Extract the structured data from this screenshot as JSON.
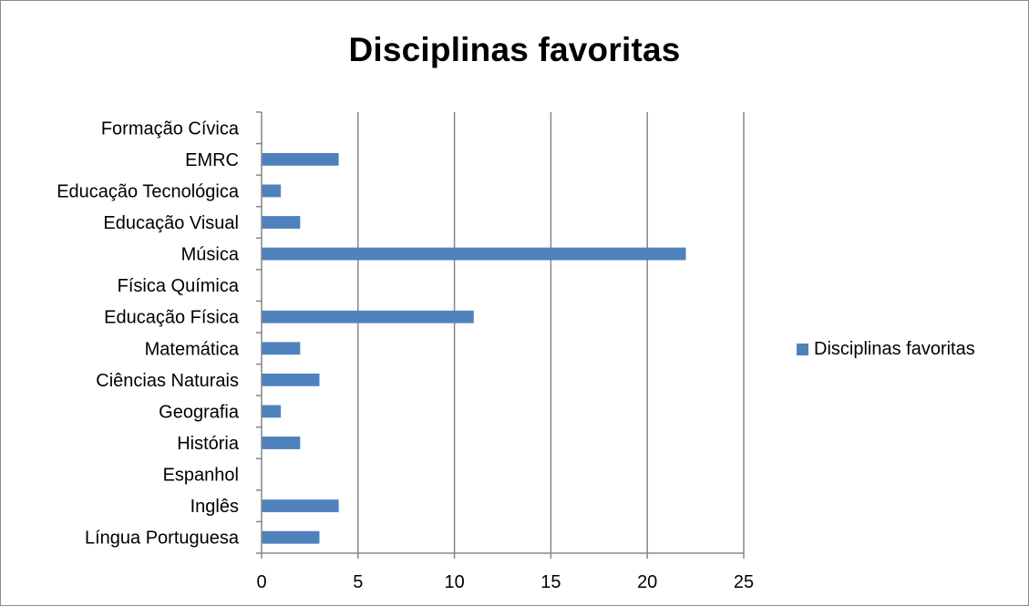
{
  "chart_data": {
    "type": "bar",
    "orientation": "horizontal",
    "title": "Disciplinas favoritas",
    "xlabel": "",
    "ylabel": "",
    "categories": [
      "Língua Portuguesa",
      "Inglês",
      "Espanhol",
      "História",
      "Geografia",
      "Ciências Naturais",
      "Matemática",
      "Educação Física",
      "Física Química",
      "Música",
      "Educação Visual",
      "Educação Tecnológica",
      "EMRC",
      "Formação Cívica"
    ],
    "series": [
      {
        "name": "Disciplinas favoritas",
        "values": [
          3,
          4,
          0,
          2,
          1,
          3,
          2,
          11,
          0,
          22,
          2,
          1,
          4,
          0
        ],
        "color": "#4f81bd"
      }
    ],
    "xlim": [
      0,
      25
    ],
    "xticks": [
      "0",
      "5",
      "10",
      "15",
      "20",
      "25"
    ],
    "grid": "vertical major gridlines",
    "legend": "right"
  },
  "colors": {
    "bar": "#4f81bd",
    "grid": "#878787",
    "axis": "#878787",
    "frame": "#8c8c8c"
  }
}
